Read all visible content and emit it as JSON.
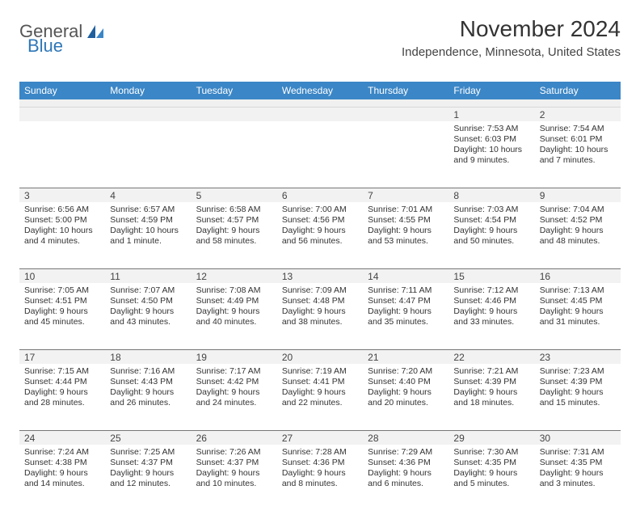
{
  "logo": {
    "word1": "General",
    "word2": "Blue"
  },
  "title": "November 2024",
  "subtitle": "Independence, Minnesota, United States",
  "colors": {
    "header_bg": "#3b86c6",
    "header_text": "#ffffff",
    "logo_accent": "#2e77b8",
    "body_bg": "#ffffff",
    "daynum_bg": "#f2f2f2",
    "rule": "#777777"
  },
  "day_names": [
    "Sunday",
    "Monday",
    "Tuesday",
    "Wednesday",
    "Thursday",
    "Friday",
    "Saturday"
  ],
  "weeks": [
    [
      null,
      null,
      null,
      null,
      null,
      {
        "n": "1",
        "sunrise": "Sunrise: 7:53 AM",
        "sunset": "Sunset: 6:03 PM",
        "daylight": "Daylight: 10 hours and 9 minutes."
      },
      {
        "n": "2",
        "sunrise": "Sunrise: 7:54 AM",
        "sunset": "Sunset: 6:01 PM",
        "daylight": "Daylight: 10 hours and 7 minutes."
      }
    ],
    [
      {
        "n": "3",
        "sunrise": "Sunrise: 6:56 AM",
        "sunset": "Sunset: 5:00 PM",
        "daylight": "Daylight: 10 hours and 4 minutes."
      },
      {
        "n": "4",
        "sunrise": "Sunrise: 6:57 AM",
        "sunset": "Sunset: 4:59 PM",
        "daylight": "Daylight: 10 hours and 1 minute."
      },
      {
        "n": "5",
        "sunrise": "Sunrise: 6:58 AM",
        "sunset": "Sunset: 4:57 PM",
        "daylight": "Daylight: 9 hours and 58 minutes."
      },
      {
        "n": "6",
        "sunrise": "Sunrise: 7:00 AM",
        "sunset": "Sunset: 4:56 PM",
        "daylight": "Daylight: 9 hours and 56 minutes."
      },
      {
        "n": "7",
        "sunrise": "Sunrise: 7:01 AM",
        "sunset": "Sunset: 4:55 PM",
        "daylight": "Daylight: 9 hours and 53 minutes."
      },
      {
        "n": "8",
        "sunrise": "Sunrise: 7:03 AM",
        "sunset": "Sunset: 4:54 PM",
        "daylight": "Daylight: 9 hours and 50 minutes."
      },
      {
        "n": "9",
        "sunrise": "Sunrise: 7:04 AM",
        "sunset": "Sunset: 4:52 PM",
        "daylight": "Daylight: 9 hours and 48 minutes."
      }
    ],
    [
      {
        "n": "10",
        "sunrise": "Sunrise: 7:05 AM",
        "sunset": "Sunset: 4:51 PM",
        "daylight": "Daylight: 9 hours and 45 minutes."
      },
      {
        "n": "11",
        "sunrise": "Sunrise: 7:07 AM",
        "sunset": "Sunset: 4:50 PM",
        "daylight": "Daylight: 9 hours and 43 minutes."
      },
      {
        "n": "12",
        "sunrise": "Sunrise: 7:08 AM",
        "sunset": "Sunset: 4:49 PM",
        "daylight": "Daylight: 9 hours and 40 minutes."
      },
      {
        "n": "13",
        "sunrise": "Sunrise: 7:09 AM",
        "sunset": "Sunset: 4:48 PM",
        "daylight": "Daylight: 9 hours and 38 minutes."
      },
      {
        "n": "14",
        "sunrise": "Sunrise: 7:11 AM",
        "sunset": "Sunset: 4:47 PM",
        "daylight": "Daylight: 9 hours and 35 minutes."
      },
      {
        "n": "15",
        "sunrise": "Sunrise: 7:12 AM",
        "sunset": "Sunset: 4:46 PM",
        "daylight": "Daylight: 9 hours and 33 minutes."
      },
      {
        "n": "16",
        "sunrise": "Sunrise: 7:13 AM",
        "sunset": "Sunset: 4:45 PM",
        "daylight": "Daylight: 9 hours and 31 minutes."
      }
    ],
    [
      {
        "n": "17",
        "sunrise": "Sunrise: 7:15 AM",
        "sunset": "Sunset: 4:44 PM",
        "daylight": "Daylight: 9 hours and 28 minutes."
      },
      {
        "n": "18",
        "sunrise": "Sunrise: 7:16 AM",
        "sunset": "Sunset: 4:43 PM",
        "daylight": "Daylight: 9 hours and 26 minutes."
      },
      {
        "n": "19",
        "sunrise": "Sunrise: 7:17 AM",
        "sunset": "Sunset: 4:42 PM",
        "daylight": "Daylight: 9 hours and 24 minutes."
      },
      {
        "n": "20",
        "sunrise": "Sunrise: 7:19 AM",
        "sunset": "Sunset: 4:41 PM",
        "daylight": "Daylight: 9 hours and 22 minutes."
      },
      {
        "n": "21",
        "sunrise": "Sunrise: 7:20 AM",
        "sunset": "Sunset: 4:40 PM",
        "daylight": "Daylight: 9 hours and 20 minutes."
      },
      {
        "n": "22",
        "sunrise": "Sunrise: 7:21 AM",
        "sunset": "Sunset: 4:39 PM",
        "daylight": "Daylight: 9 hours and 18 minutes."
      },
      {
        "n": "23",
        "sunrise": "Sunrise: 7:23 AM",
        "sunset": "Sunset: 4:39 PM",
        "daylight": "Daylight: 9 hours and 15 minutes."
      }
    ],
    [
      {
        "n": "24",
        "sunrise": "Sunrise: 7:24 AM",
        "sunset": "Sunset: 4:38 PM",
        "daylight": "Daylight: 9 hours and 14 minutes."
      },
      {
        "n": "25",
        "sunrise": "Sunrise: 7:25 AM",
        "sunset": "Sunset: 4:37 PM",
        "daylight": "Daylight: 9 hours and 12 minutes."
      },
      {
        "n": "26",
        "sunrise": "Sunrise: 7:26 AM",
        "sunset": "Sunset: 4:37 PM",
        "daylight": "Daylight: 9 hours and 10 minutes."
      },
      {
        "n": "27",
        "sunrise": "Sunrise: 7:28 AM",
        "sunset": "Sunset: 4:36 PM",
        "daylight": "Daylight: 9 hours and 8 minutes."
      },
      {
        "n": "28",
        "sunrise": "Sunrise: 7:29 AM",
        "sunset": "Sunset: 4:36 PM",
        "daylight": "Daylight: 9 hours and 6 minutes."
      },
      {
        "n": "29",
        "sunrise": "Sunrise: 7:30 AM",
        "sunset": "Sunset: 4:35 PM",
        "daylight": "Daylight: 9 hours and 5 minutes."
      },
      {
        "n": "30",
        "sunrise": "Sunrise: 7:31 AM",
        "sunset": "Sunset: 4:35 PM",
        "daylight": "Daylight: 9 hours and 3 minutes."
      }
    ]
  ]
}
